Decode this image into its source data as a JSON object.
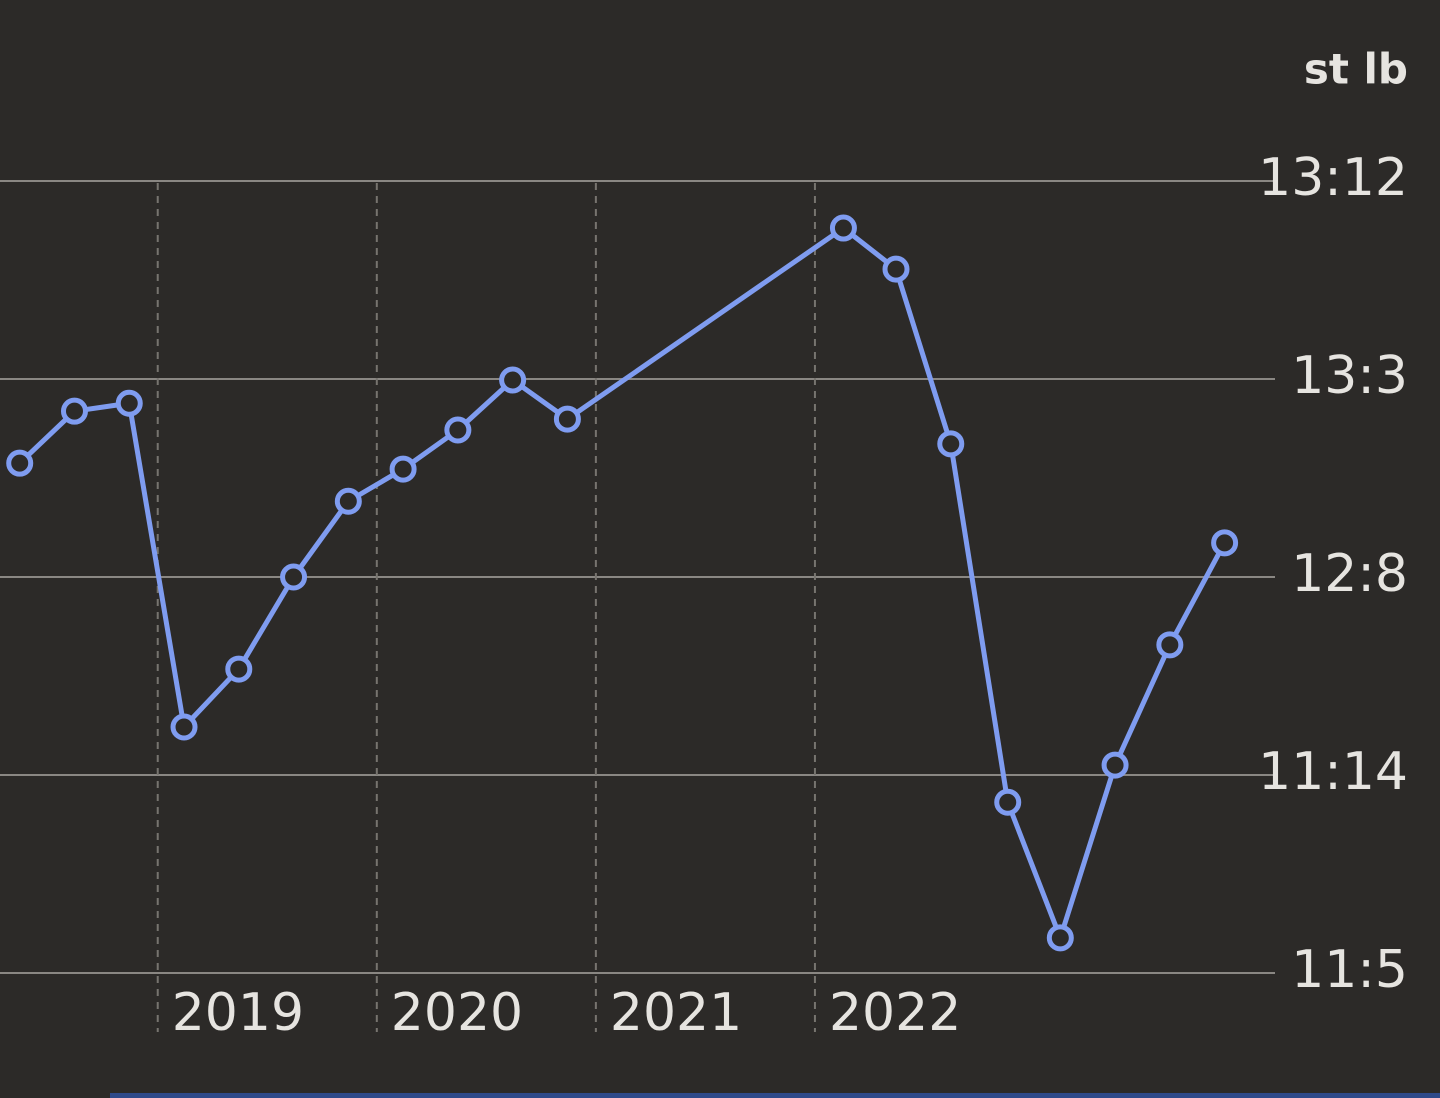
{
  "chart_data": {
    "type": "line",
    "y_label": "st lb",
    "x": [
      2018.37,
      2018.62,
      2018.87,
      2019.12,
      2019.37,
      2019.62,
      2019.87,
      2020.12,
      2020.37,
      2020.62,
      2020.87,
      2022.13,
      2022.37,
      2022.62,
      2022.88,
      2023.12,
      2023.37,
      2023.62,
      2023.87
    ],
    "series": [
      {
        "color": "#7f9cf0",
        "values": [
          82.3,
          83.35,
          83.51,
          76.97,
          78.14,
          80.0,
          81.53,
          82.18,
          82.97,
          83.98,
          83.19,
          87.05,
          86.22,
          82.69,
          75.45,
          72.71,
          76.2,
          78.63,
          80.69
        ]
      }
    ],
    "xlim": [
      2018.28,
      2024.1
    ],
    "xticks": [
      2019,
      2020,
      2021,
      2022
    ],
    "ylim": [
      72,
      88
    ],
    "yticks": [
      {
        "value": 72,
        "label": "11:5"
      },
      {
        "value": 76,
        "label": "11:14"
      },
      {
        "value": 80,
        "label": "12:8"
      },
      {
        "value": 84,
        "label": "13:3"
      },
      {
        "value": 88,
        "label": "13:12"
      }
    ],
    "grid": true
  }
}
